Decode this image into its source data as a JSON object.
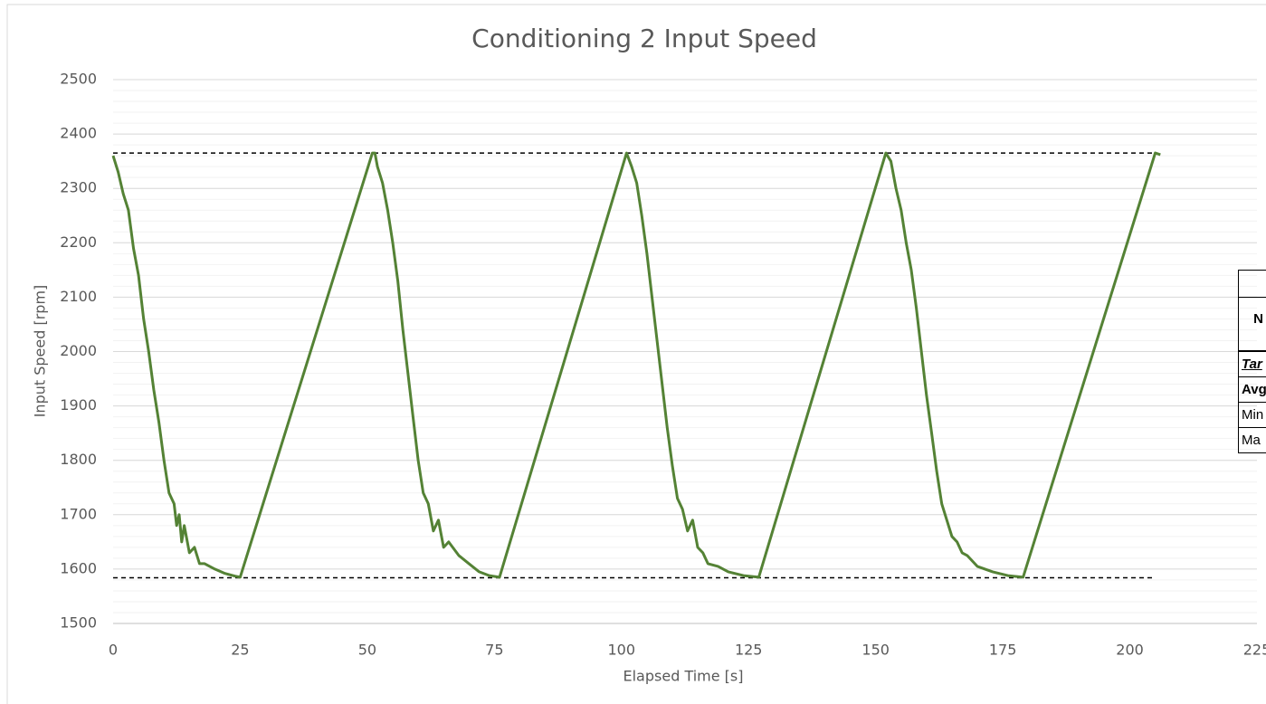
{
  "chart_data": {
    "type": "line",
    "title": "Conditioning 2 Input Speed",
    "xlabel": "Elapsed Time [s]",
    "ylabel": "Input Speed [rpm]",
    "xlim": [
      0,
      225
    ],
    "xticks": [
      0,
      25,
      50,
      75,
      100,
      125,
      150,
      175,
      200,
      225
    ],
    "ylim": [
      1500,
      2500
    ],
    "yticks": [
      1500,
      1600,
      1700,
      1800,
      1900,
      2000,
      2100,
      2200,
      2300,
      2400,
      2500
    ],
    "minor_ystep": 20,
    "grid": true,
    "hlines": [
      2365,
      1584
    ],
    "hline_xlim": [
      0,
      205
    ],
    "hline_color": "#000000",
    "series": [
      {
        "name": "Input Speed",
        "color": "#548235",
        "x": [
          0,
          1,
          2,
          3,
          4,
          5,
          6,
          7,
          8,
          9,
          10,
          11,
          12,
          12.5,
          13,
          13.5,
          14,
          15,
          16,
          17,
          18,
          20,
          22,
          24,
          25,
          51,
          51.5,
          52,
          53,
          54,
          55,
          56,
          57,
          58,
          59,
          60,
          61,
          62,
          63,
          64,
          65,
          66,
          68,
          70,
          72,
          74,
          76,
          101,
          102,
          103,
          104,
          105,
          106,
          107,
          108,
          109,
          110,
          111,
          112,
          113,
          114,
          115,
          116,
          117,
          119,
          121,
          124,
          127,
          152,
          153,
          154,
          155,
          156,
          157,
          158,
          159,
          160,
          161,
          162,
          163,
          164,
          165,
          166,
          167,
          168,
          170,
          173,
          176,
          179,
          205,
          206
        ],
        "values": [
          2360,
          2330,
          2290,
          2260,
          2190,
          2140,
          2060,
          2000,
          1930,
          1870,
          1800,
          1740,
          1720,
          1680,
          1700,
          1650,
          1680,
          1630,
          1640,
          1610,
          1610,
          1600,
          1592,
          1587,
          1585,
          2365,
          2365,
          2340,
          2310,
          2260,
          2200,
          2130,
          2040,
          1960,
          1880,
          1800,
          1740,
          1720,
          1670,
          1690,
          1640,
          1650,
          1625,
          1610,
          1595,
          1588,
          1585,
          2365,
          2340,
          2310,
          2250,
          2180,
          2100,
          2020,
          1940,
          1860,
          1790,
          1730,
          1710,
          1670,
          1690,
          1640,
          1630,
          1610,
          1605,
          1595,
          1588,
          1585,
          2365,
          2350,
          2300,
          2260,
          2200,
          2150,
          2080,
          2000,
          1920,
          1850,
          1780,
          1720,
          1690,
          1660,
          1650,
          1630,
          1625,
          1605,
          1595,
          1588,
          1585,
          2365,
          2362
        ]
      }
    ]
  },
  "table": {
    "rows": [
      "N",
      "Tar",
      "Avg",
      "Min",
      "Ma"
    ]
  }
}
